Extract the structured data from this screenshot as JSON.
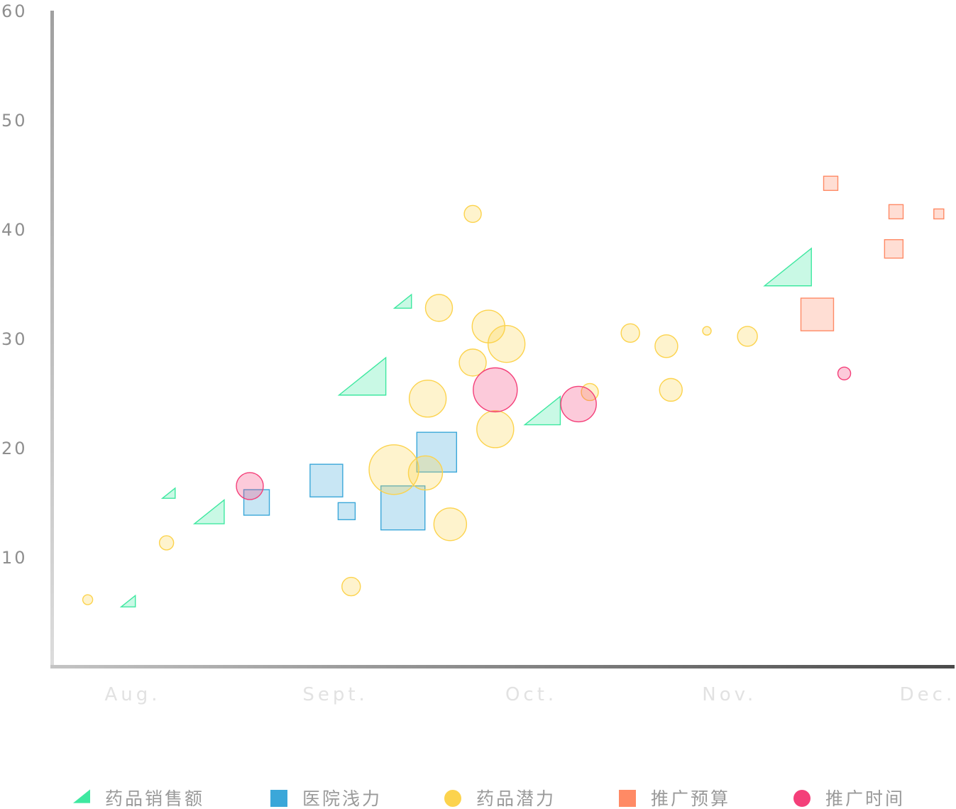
{
  "chart_data": {
    "type": "scatter",
    "subtype": "bubble",
    "title": "",
    "xlabel": "",
    "ylabel": "",
    "xlim": [
      0,
      40
    ],
    "ylim": [
      0,
      60
    ],
    "yticks": [
      10,
      20,
      30,
      40,
      50,
      60
    ],
    "x_tick_labels": [
      {
        "label": "Aug.",
        "x": 3.5
      },
      {
        "label": "Sept.",
        "x": 12.5
      },
      {
        "label": "Oct.",
        "x": 21.2
      },
      {
        "label": "Nov.",
        "x": 30
      },
      {
        "label": "Dec.",
        "x": 38.8
      }
    ],
    "grid": true,
    "legend_position": "bottom",
    "series": [
      {
        "name": "药品销售额",
        "shape": "triangle",
        "color": "#3EE8A0",
        "points": [
          {
            "x": 3.3,
            "y": 5.8,
            "size": 10
          },
          {
            "x": 5.1,
            "y": 15.7,
            "size": 9
          },
          {
            "x": 6.9,
            "y": 13.8,
            "size": 21
          },
          {
            "x": 13.7,
            "y": 26.0,
            "size": 33
          },
          {
            "x": 15.5,
            "y": 33.2,
            "size": 12
          },
          {
            "x": 21.7,
            "y": 23.0,
            "size": 25
          },
          {
            "x": 32.6,
            "y": 36.0,
            "size": 33
          }
        ]
      },
      {
        "name": "医院浅力",
        "shape": "square",
        "color": "#3BA7D9",
        "points": [
          {
            "x": 9.0,
            "y": 15.0,
            "size": 18
          },
          {
            "x": 12.1,
            "y": 17.0,
            "size": 23
          },
          {
            "x": 13.0,
            "y": 14.2,
            "size": 12
          },
          {
            "x": 15.5,
            "y": 14.5,
            "size": 31
          },
          {
            "x": 17.0,
            "y": 19.6,
            "size": 28
          }
        ]
      },
      {
        "name": "药品潜力",
        "shape": "circle",
        "color": "#FCD34D",
        "points": [
          {
            "x": 1.5,
            "y": 6.1,
            "size": 7
          },
          {
            "x": 5.0,
            "y": 11.3,
            "size": 10
          },
          {
            "x": 13.2,
            "y": 7.3,
            "size": 13
          },
          {
            "x": 15.1,
            "y": 18.0,
            "size": 35
          },
          {
            "x": 16.6,
            "y": 24.5,
            "size": 26
          },
          {
            "x": 16.5,
            "y": 17.7,
            "size": 24
          },
          {
            "x": 17.1,
            "y": 32.8,
            "size": 19
          },
          {
            "x": 17.6,
            "y": 13.0,
            "size": 23
          },
          {
            "x": 18.6,
            "y": 41.4,
            "size": 12
          },
          {
            "x": 18.6,
            "y": 27.8,
            "size": 19
          },
          {
            "x": 19.3,
            "y": 31.1,
            "size": 23
          },
          {
            "x": 19.6,
            "y": 21.7,
            "size": 26
          },
          {
            "x": 20.1,
            "y": 29.5,
            "size": 26
          },
          {
            "x": 23.8,
            "y": 25.1,
            "size": 12
          },
          {
            "x": 25.6,
            "y": 30.5,
            "size": 13
          },
          {
            "x": 27.2,
            "y": 29.3,
            "size": 16
          },
          {
            "x": 27.4,
            "y": 25.3,
            "size": 16
          },
          {
            "x": 29.0,
            "y": 30.7,
            "size": 6
          },
          {
            "x": 30.8,
            "y": 30.2,
            "size": 14
          }
        ]
      },
      {
        "name": "推广预算",
        "shape": "square",
        "color": "#FF8A65",
        "points": [
          {
            "x": 33.9,
            "y": 32.2,
            "size": 23
          },
          {
            "x": 34.5,
            "y": 44.2,
            "size": 10
          },
          {
            "x": 37.3,
            "y": 38.2,
            "size": 13
          },
          {
            "x": 37.4,
            "y": 41.6,
            "size": 10
          },
          {
            "x": 39.3,
            "y": 41.4,
            "size": 7
          }
        ]
      },
      {
        "name": "推广时间",
        "shape": "circle",
        "color": "#F43F79",
        "points": [
          {
            "x": 8.7,
            "y": 16.5,
            "size": 19
          },
          {
            "x": 19.6,
            "y": 25.3,
            "size": 31
          },
          {
            "x": 23.3,
            "y": 24.0,
            "size": 25
          },
          {
            "x": 35.1,
            "y": 26.8,
            "size": 9
          }
        ]
      }
    ]
  }
}
